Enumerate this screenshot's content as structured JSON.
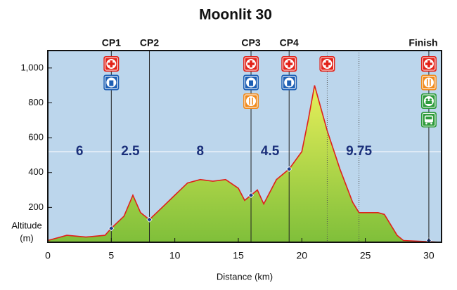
{
  "chart_data": {
    "type": "area",
    "title": "Moonlit 30",
    "xlabel": "Distance (km)",
    "ylabel_lines": [
      "Altitude",
      "(m)"
    ],
    "x": [
      0,
      1.5,
      3,
      4.5,
      5,
      6,
      6.7,
      7.3,
      8,
      9,
      10,
      11,
      12,
      13,
      14,
      15,
      15.5,
      16,
      16.5,
      17,
      18,
      19,
      20,
      20.5,
      21,
      21.5,
      22,
      23,
      24,
      24.5,
      26,
      26.5,
      27.5,
      28,
      31
    ],
    "y": [
      10,
      40,
      30,
      40,
      80,
      150,
      270,
      170,
      130,
      200,
      270,
      340,
      360,
      350,
      360,
      310,
      240,
      270,
      300,
      220,
      360,
      420,
      520,
      700,
      900,
      770,
      640,
      420,
      230,
      170,
      170,
      160,
      40,
      10,
      0
    ],
    "line_color": "#e0201b",
    "fill_colors": [
      "#e8ef5a",
      "#7fbf3a"
    ],
    "background": "#bcd6ec",
    "xlim": [
      0,
      31
    ],
    "ylim": [
      0,
      1100
    ],
    "xticks": [
      0,
      5,
      10,
      15,
      20,
      25,
      30
    ],
    "yticks": [
      200,
      400,
      600,
      800,
      {
        "value": 1000,
        "label": "1,000"
      }
    ],
    "checkpoints": [
      {
        "label": "CP1",
        "x": 5,
        "altitude": 80
      },
      {
        "label": "CP2",
        "x": 8,
        "altitude": 130
      },
      {
        "label": "CP3",
        "x": 16,
        "altitude": 270
      },
      {
        "label": "CP4",
        "x": 19,
        "altitude": 420
      },
      {
        "label": "Finish",
        "x": 30,
        "altitude": 10
      }
    ],
    "dotted_lines": [
      22,
      24.5
    ],
    "segments": [
      6,
      2.5,
      8,
      4.5,
      9.75
    ]
  }
}
